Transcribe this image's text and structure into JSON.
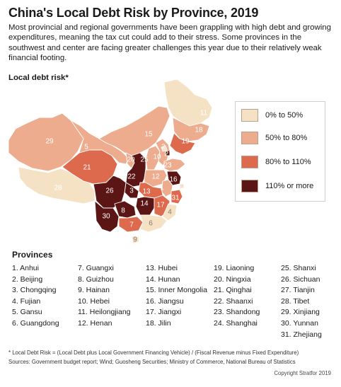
{
  "title": "China's Local Debt Risk by Province, 2019",
  "subtitle": "Most provincial and regional governments have been grappling with high debt and growing expenditures, meaning the tax cut could add to their stress. Some provinces in the southwest and center are facing greater challenges this year due to their relatively weak financial footing.",
  "map_label": "Local debt risk*",
  "colors": {
    "low": "#f5e2c5",
    "mid": "#eeac8e",
    "high": "#dd6a4d",
    "very_high": "#5b1514",
    "outline": "#ffffff"
  },
  "legend": [
    {
      "label": "0% to 50%",
      "color_key": "low"
    },
    {
      "label": "50% to 80%",
      "color_key": "mid"
    },
    {
      "label": "80% to 110%",
      "color_key": "high"
    },
    {
      "label": "110% or more",
      "color_key": "very_high"
    }
  ],
  "map_numbers": [
    "1",
    "2",
    "3",
    "4",
    "5",
    "6",
    "7",
    "8",
    "9",
    "10",
    "11",
    "12",
    "13",
    "14",
    "15",
    "16",
    "17",
    "18",
    "19",
    "20",
    "21",
    "22",
    "23",
    "24",
    "25",
    "26",
    "27",
    "28",
    "29",
    "30",
    "31"
  ],
  "provinces_heading": "Provinces",
  "provinces": {
    "col1": [
      "1. Anhui",
      "2. Beijing",
      "3. Chongqing",
      "4. Fujian",
      "5. Gansu",
      "6. Guangdong"
    ],
    "col2": [
      "7. Guangxi",
      "8. Guizhou",
      "9. Hainan",
      "10. Hebei",
      "11. Heilongjiang",
      "12. Henan"
    ],
    "col3": [
      "13. Hubei",
      "14. Hunan",
      "15. Inner Mongolia",
      "16. Jiangsu",
      "17. Jiangxi",
      "18. Jilin"
    ],
    "col4": [
      "19. Liaoning",
      "20. Ningxia",
      "21. Qinghai",
      "22. Shaanxi",
      "23. Shandong",
      "24. Shanghai"
    ],
    "col5": [
      "25. Shanxi",
      "26. Sichuan",
      "27. Tianjin",
      "28. Tibet",
      "29. Xinjiang",
      "30. Yunnan",
      "31. Zhejiang"
    ]
  },
  "footnote_1": "* Local Debt Risk = (Local Debt plus Local Government Financing Vehicle) / (Fiscal Revenue minus Fixed Expenditure)",
  "footnote_2": "Sources: Government budget report; Wind; Guosheng Securities; Ministry of Commerce, National Bureau of Statistics",
  "copyright": "Copyright Stratfor 2019"
}
